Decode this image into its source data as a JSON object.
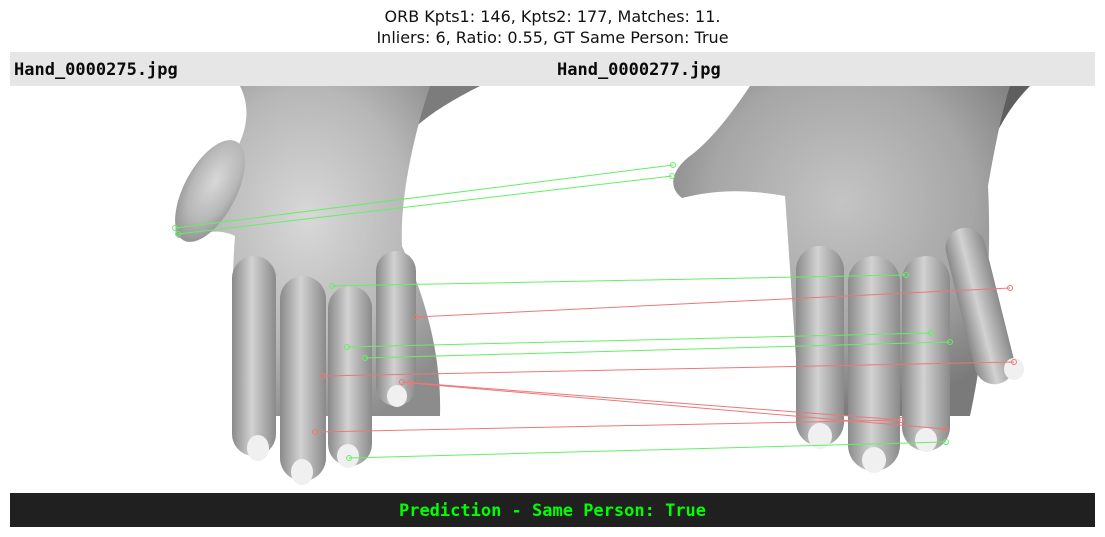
{
  "title": {
    "line1": "ORB Kpts1: 146, Kpts2: 177, Matches: 11.",
    "line2": "Inliers: 6, Ratio: 0.55, GT Same Person: True"
  },
  "images": {
    "left_filename": "Hand_0000275.jpg",
    "right_filename": "Hand_0000277.jpg"
  },
  "prediction": {
    "text": "Prediction - Same Person: True",
    "color": "#00ff00"
  },
  "colors": {
    "inlier": "#66ee66",
    "outlier": "#ee7777",
    "header_bg": "#e6e6e6",
    "footer_bg": "#202020"
  },
  "matches": [
    {
      "left": [
        165,
        142
      ],
      "right": [
        663,
        79
      ],
      "inlier": true
    },
    {
      "left": [
        168,
        148
      ],
      "right": [
        662,
        90
      ],
      "inlier": true
    },
    {
      "left": [
        322,
        200
      ],
      "right": [
        896,
        189
      ],
      "inlier": true
    },
    {
      "left": [
        406,
        231
      ],
      "right": [
        1000,
        202
      ],
      "inlier": false
    },
    {
      "left": [
        337,
        261
      ],
      "right": [
        921,
        247
      ],
      "inlier": true
    },
    {
      "left": [
        355,
        272
      ],
      "right": [
        940,
        256
      ],
      "inlier": true
    },
    {
      "left": [
        313,
        290
      ],
      "right": [
        1004,
        276
      ],
      "inlier": false
    },
    {
      "left": [
        392,
        296
      ],
      "right": [
        891,
        334
      ],
      "inlier": false
    },
    {
      "left": [
        400,
        297
      ],
      "right": [
        935,
        343
      ],
      "inlier": false
    },
    {
      "left": [
        305,
        346
      ],
      "right": [
        891,
        334
      ],
      "inlier": false
    },
    {
      "left": [
        339,
        372
      ],
      "right": [
        936,
        356
      ],
      "inlier": true
    }
  ]
}
